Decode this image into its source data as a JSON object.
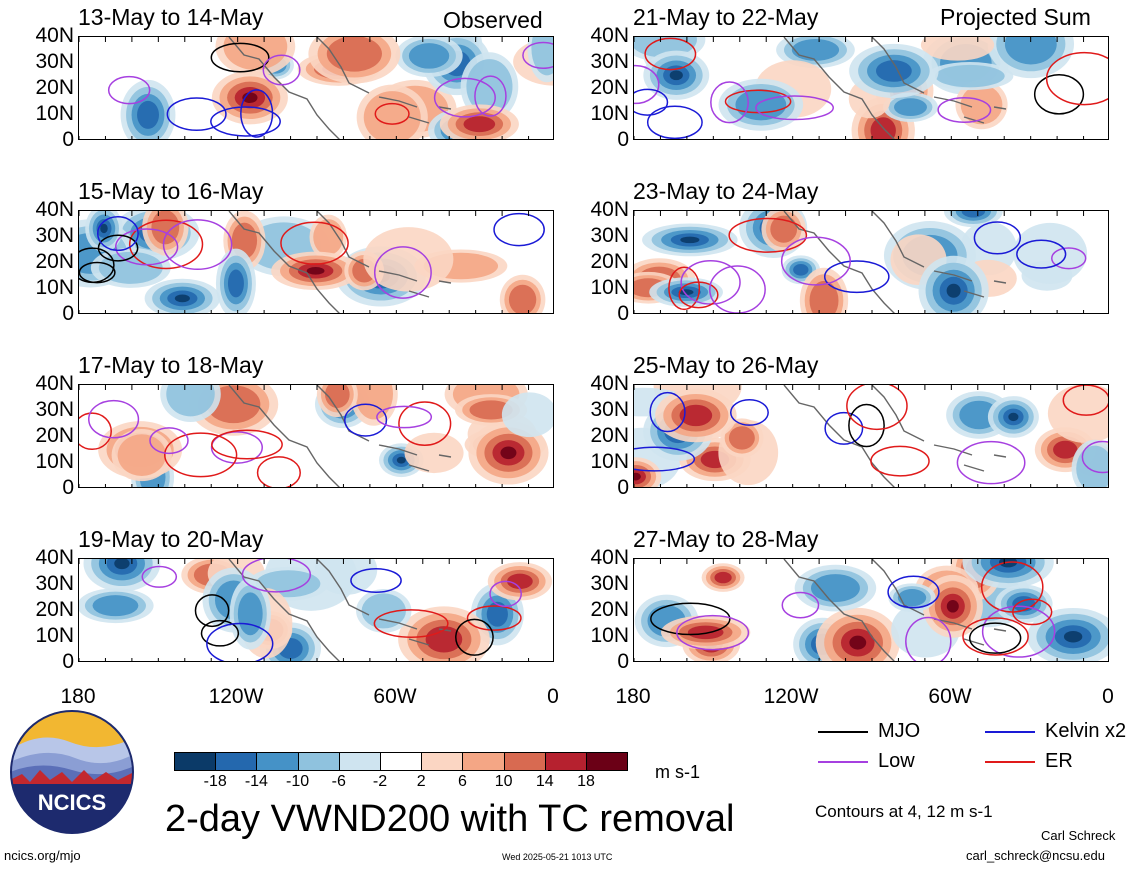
{
  "panels": [
    {
      "title": "13-May to 14-May",
      "tag": "Observed"
    },
    {
      "title": "21-May to 22-May",
      "tag": "Projected Sum"
    },
    {
      "title": "15-May to 16-May",
      "tag": ""
    },
    {
      "title": "23-May to 24-May",
      "tag": ""
    },
    {
      "title": "17-May to 18-May",
      "tag": ""
    },
    {
      "title": "25-May to 26-May",
      "tag": ""
    },
    {
      "title": "19-May to 20-May",
      "tag": ""
    },
    {
      "title": "27-May to 28-May",
      "tag": ""
    }
  ],
  "y_ticks": [
    "40N",
    "30N",
    "20N",
    "10N",
    "0"
  ],
  "x_ticks": [
    "180",
    "120W",
    "60W",
    "0"
  ],
  "colorbar": {
    "colors": [
      "#0b3a68",
      "#2468ae",
      "#4592c7",
      "#8fc2de",
      "#cfe4f0",
      "#ffffff",
      "#fbd6c3",
      "#f4a685",
      "#d86a51",
      "#b6212f",
      "#6b0016"
    ],
    "tick_labels": [
      "-18",
      "-14",
      "-10",
      "-6",
      "-2",
      "2",
      "6",
      "10",
      "14",
      "18"
    ],
    "units": "m s-1"
  },
  "legend": {
    "mjo": {
      "label": "MJO",
      "color": "#000000"
    },
    "kelvin": {
      "label": "Kelvin x2",
      "color": "#1a1ad6"
    },
    "low": {
      "label": "Low",
      "color": "#a640e0"
    },
    "er": {
      "label": "ER",
      "color": "#e01a1a"
    }
  },
  "contours_note": "Contours at 4, 12 m s-1",
  "main_title": "2-day VWND200 with TC removal",
  "footer": {
    "left": "ncics.org/mjo",
    "center": "Wed 2025-05-21 1013 UTC",
    "right_name": "Carl Schreck",
    "right_email": "carl_schreck@ncsu.edu"
  },
  "logo_text": "NCICS"
}
